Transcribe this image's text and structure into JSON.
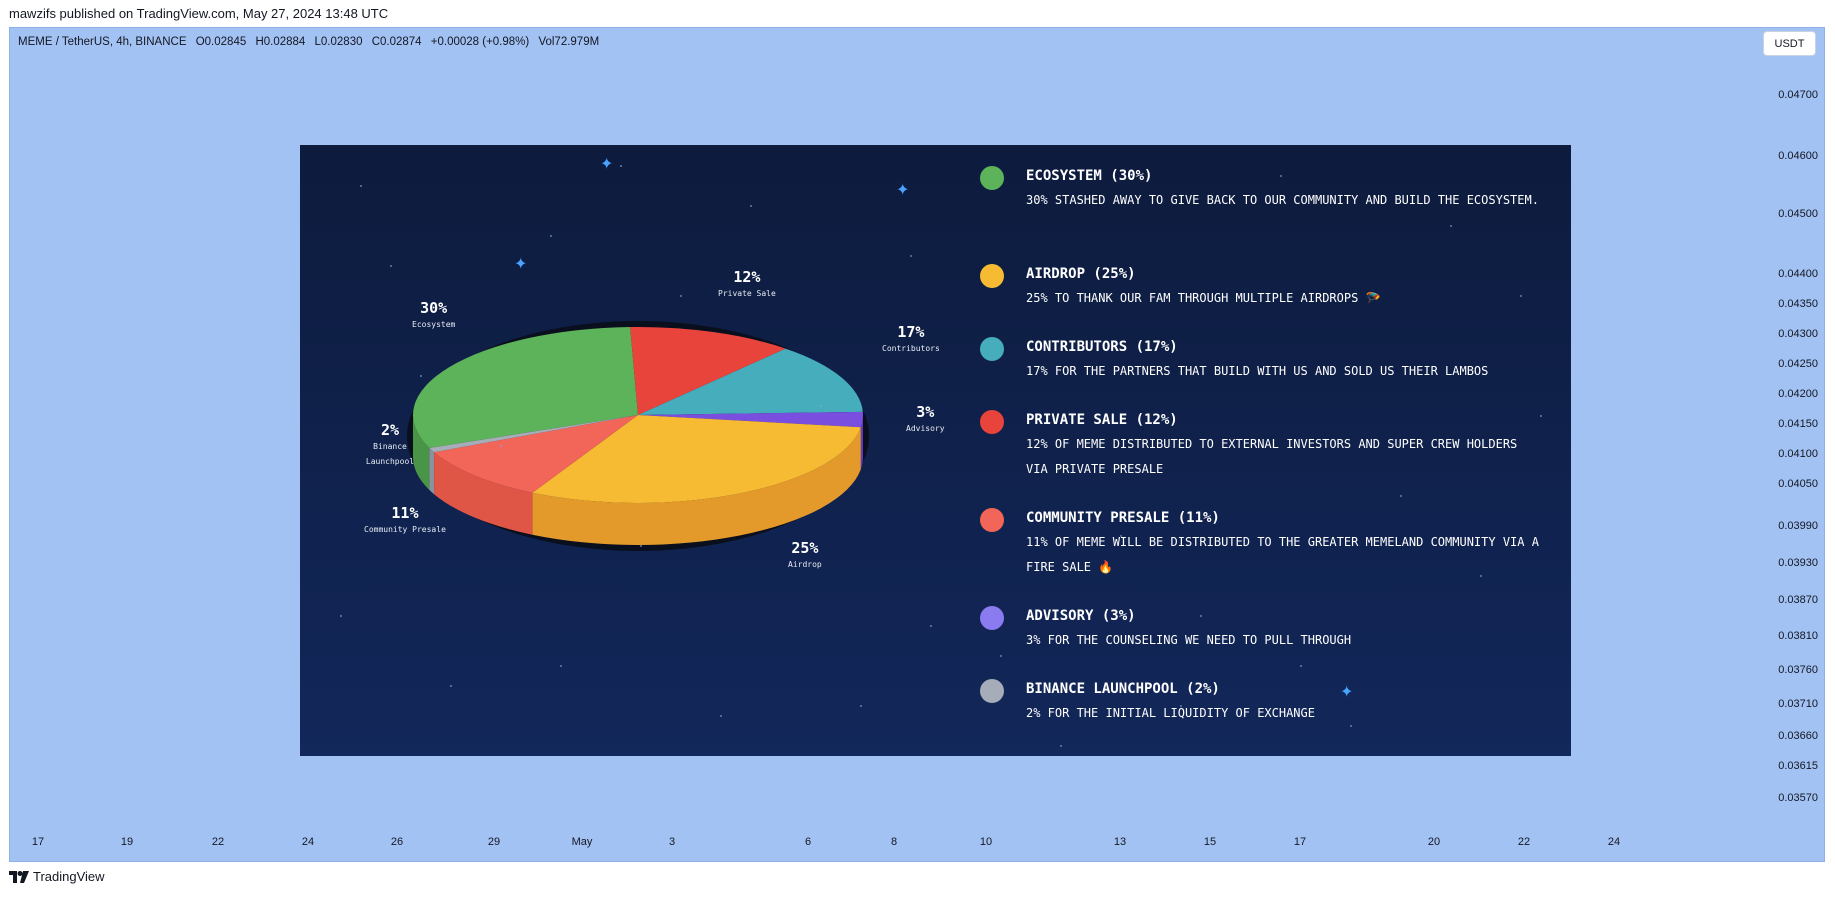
{
  "header": {
    "published_text": "mawzifs published on TradingView.com, May 27, 2024 13:48 UTC"
  },
  "symbol": {
    "name": "MEME / TetherUS, 4h, BINANCE",
    "open": "O0.02845",
    "high": "H0.02884",
    "low": "L0.02830",
    "close": "C0.02874",
    "change": "+0.00028 (+0.98%)",
    "volume": "Vol72.979M"
  },
  "currency_button": "USDT",
  "price_axis": [
    "0.04700",
    "0.04600",
    "0.04500",
    "0.04400",
    "0.04350",
    "0.04300",
    "0.04250",
    "0.04200",
    "0.04150",
    "0.04100",
    "0.04050",
    "0.03990",
    "0.03930",
    "0.03870",
    "0.03810",
    "0.03760",
    "0.03710",
    "0.03660",
    "0.03615",
    "0.03570"
  ],
  "time_axis": [
    "17",
    "19",
    "22",
    "24",
    "26",
    "29",
    "May",
    "3",
    "6",
    "8",
    "10",
    "13",
    "15",
    "17",
    "20",
    "22",
    "24"
  ],
  "footer": {
    "brand": "TradingView"
  },
  "tokenomics": {
    "slices": [
      {
        "key": "ecosystem",
        "pct": "30%",
        "label": "Ecosystem",
        "color": "#5db35a",
        "side": "#4a9448"
      },
      {
        "key": "private",
        "pct": "12%",
        "label": "Private Sale",
        "color": "#e9443c",
        "side": "#c7362f"
      },
      {
        "key": "contrib",
        "pct": "17%",
        "label": "Contributors",
        "color": "#45adbb",
        "side": "#3790a0"
      },
      {
        "key": "advisory",
        "pct": "3%",
        "label": "Advisory",
        "color": "#7a4fe0",
        "side": "#6338c4"
      },
      {
        "key": "airdrop",
        "pct": "25%",
        "label": "Airdrop",
        "color": "#f7bb33",
        "side": "#e39a2b"
      },
      {
        "key": "community",
        "pct": "11%",
        "label": "Community Presale",
        "color": "#f2665a",
        "side": "#e05646"
      },
      {
        "key": "binance",
        "pct": "2%",
        "label": "Binance Launchpool",
        "color": "#a6adb8",
        "side": "#8a92a0"
      }
    ],
    "legend": [
      {
        "title": "ECOSYSTEM (30%)",
        "desc": "30% STASHED AWAY TO GIVE BACK TO OUR COMMUNITY AND BUILD THE ECOSYSTEM.",
        "color": "#5db35a"
      },
      {
        "title": "AIRDROP (25%)",
        "desc": "25% TO THANK OUR FAM THROUGH MULTIPLE AIRDROPS 🪂",
        "color": "#f7bb33"
      },
      {
        "title": "CONTRIBUTORS (17%)",
        "desc": "17% FOR THE PARTNERS THAT BUILD WITH US AND SOLD US THEIR LAMBOS",
        "color": "#45adbb"
      },
      {
        "title": "PRIVATE SALE (12%)",
        "desc": "12% OF MEME DISTRIBUTED TO EXTERNAL INVESTORS AND SUPER CREW HOLDERS VIA PRIVATE PRESALE",
        "color": "#e9443c"
      },
      {
        "title": "COMMUNITY PRESALE (11%)",
        "desc": "11% OF MEME WILL BE DISTRIBUTED TO THE GREATER MEMELAND COMMUNITY VIA A FIRE SALE 🔥",
        "color": "#f2665a"
      },
      {
        "title": "ADVISORY (3%)",
        "desc": "3% FOR THE COUNSELING WE NEED TO PULL THROUGH",
        "color": "#8a7cf0"
      },
      {
        "title": "BINANCE LAUNCHPOOL (2%)",
        "desc": "2% FOR THE INITIAL LIQUIDITY OF EXCHANGE",
        "color": "#a6adb8"
      }
    ]
  }
}
